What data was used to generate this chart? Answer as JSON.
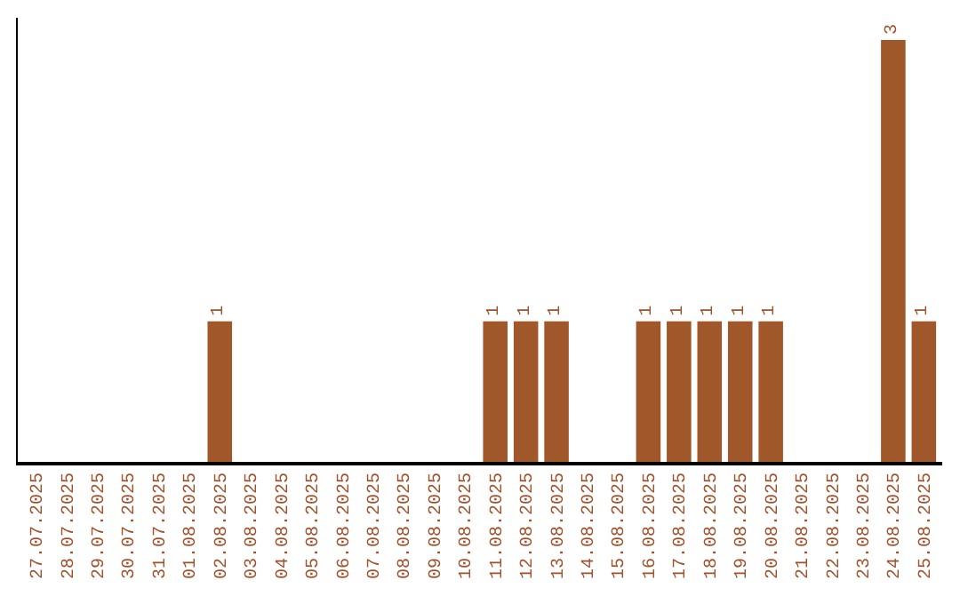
{
  "chart_data": {
    "type": "bar",
    "categories": [
      "27.07.2025",
      "28.07.2025",
      "29.07.2025",
      "30.07.2025",
      "31.07.2025",
      "01.08.2025",
      "02.08.2025",
      "03.08.2025",
      "04.08.2025",
      "05.08.2025",
      "06.08.2025",
      "07.08.2025",
      "08.08.2025",
      "09.08.2025",
      "10.08.2025",
      "11.08.2025",
      "12.08.2025",
      "13.08.2025",
      "14.08.2025",
      "15.08.2025",
      "16.08.2025",
      "17.08.2025",
      "18.08.2025",
      "19.08.2025",
      "20.08.2025",
      "21.08.2025",
      "22.08.2025",
      "23.08.2025",
      "24.08.2025",
      "25.08.2025"
    ],
    "values": [
      0,
      0,
      0,
      0,
      0,
      0,
      1,
      0,
      0,
      0,
      0,
      0,
      0,
      0,
      0,
      1,
      1,
      1,
      0,
      0,
      1,
      1,
      1,
      1,
      1,
      0,
      0,
      0,
      3,
      1
    ],
    "value_labels": [
      null,
      null,
      null,
      null,
      null,
      null,
      "1",
      null,
      null,
      null,
      null,
      null,
      null,
      null,
      null,
      "1",
      "1",
      "1",
      null,
      null,
      "1",
      "1",
      "1",
      "1",
      "1",
      null,
      null,
      null,
      "3",
      "1"
    ],
    "color": "#a0572a",
    "tick_labels": "x"
  }
}
